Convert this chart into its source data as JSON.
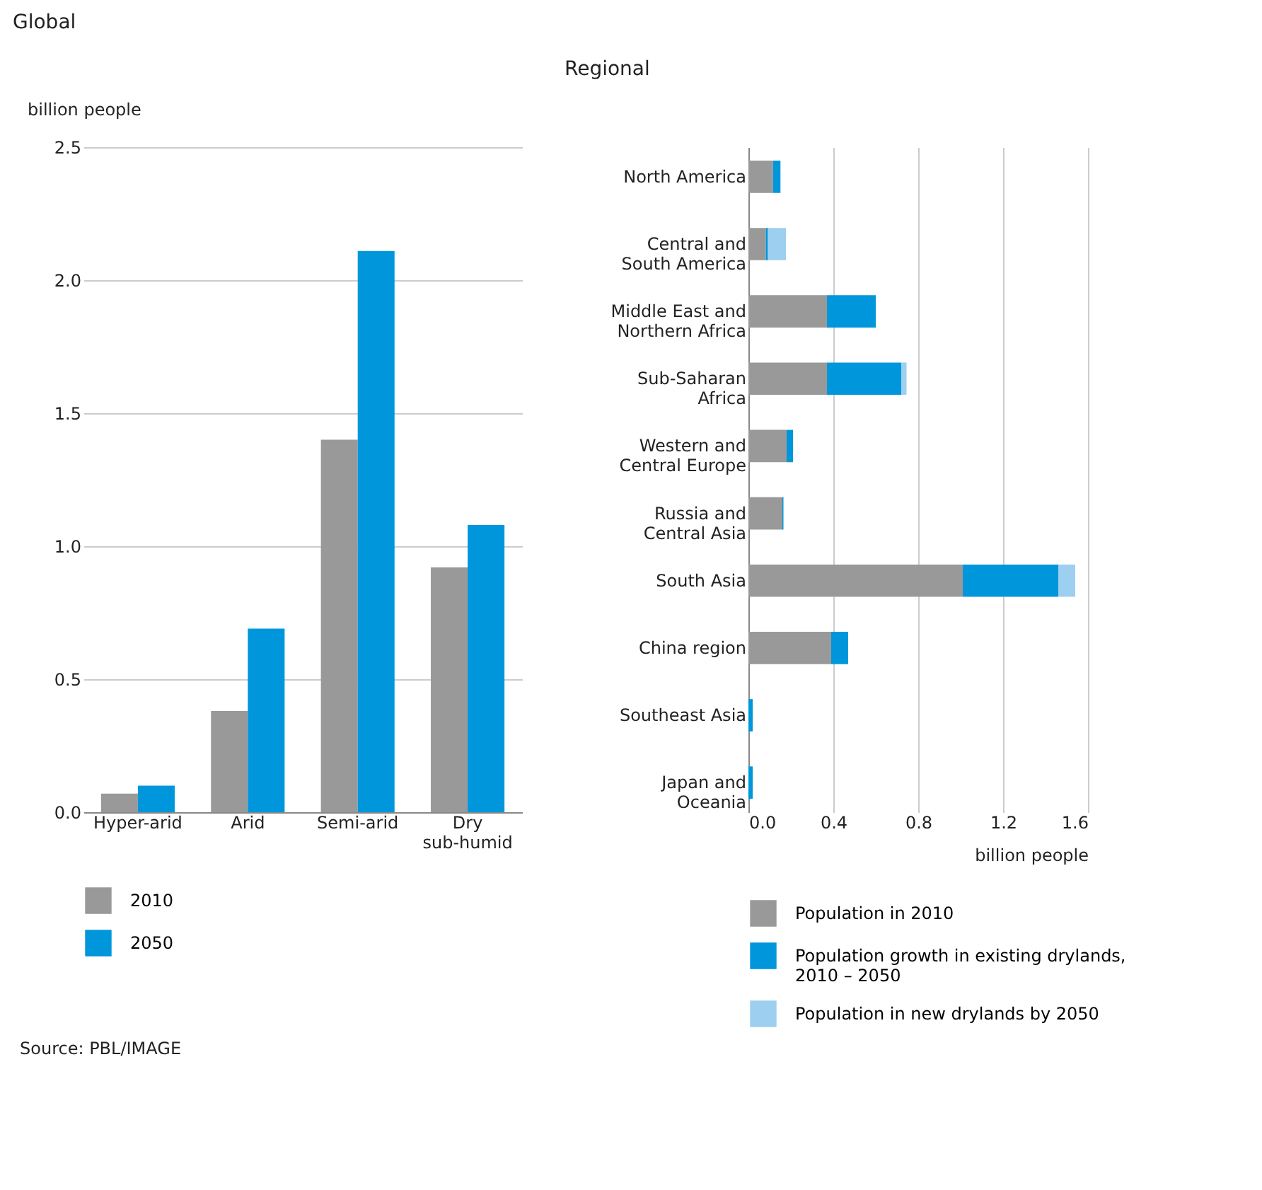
{
  "chart_data": [
    {
      "type": "bar",
      "title": "Global",
      "ylabel": "billion people",
      "categories": [
        "Hyper-arid",
        "Arid",
        "Semi-arid",
        "Dry\nsub-humid"
      ],
      "series": [
        {
          "name": "2010",
          "color": "#999999",
          "values": [
            0.07,
            0.38,
            1.4,
            0.92
          ]
        },
        {
          "name": "2050",
          "color": "#0096db",
          "values": [
            0.1,
            0.69,
            2.11,
            1.08
          ]
        }
      ],
      "ylim": [
        0,
        2.5
      ],
      "yticks": [
        {
          "value": 0,
          "label": "0.0"
        },
        0.5,
        {
          "value": 1,
          "label": "1.0"
        },
        1.5,
        {
          "value": 2,
          "label": "2.0"
        },
        2.5
      ],
      "grid": "y",
      "legend": "bottom",
      "annotations": [
        "Source: PBL/IMAGE"
      ]
    },
    {
      "type": "bar",
      "title": "Regional",
      "xlabel": "billion people",
      "orientation": "horizontal",
      "stacked": true,
      "categories": [
        "North America",
        "Central and\nSouth America",
        "Middle East and\nNorthern Africa",
        "Sub-Saharan\nAfrica",
        "Western and\nCentral Europe",
        "Russia and\nCentral Asia",
        "South Asia",
        "China region",
        "Southeast Asia",
        "Japan and\nOceania"
      ],
      "series": [
        {
          "name": "Population in 2010",
          "color": "#999999",
          "values": [
            0.116,
            0.082,
            0.37,
            0.37,
            0.18,
            0.16,
            1.01,
            0.39,
            0,
            0
          ]
        },
        {
          "name": "Population growth in existing drylands,\n2010 – 2050",
          "color": "#0096db",
          "values": [
            0.035,
            0.01,
            0.23,
            0.35,
            0.03,
            0.005,
            0.45,
            0.08,
            0.02,
            0.02
          ]
        },
        {
          "name": "Population in new drylands by 2050",
          "color": "#9dcff0",
          "values": [
            0,
            0.085,
            0,
            0.025,
            0,
            0,
            0.08,
            0,
            0,
            0
          ]
        }
      ],
      "xlim": [
        0,
        1.6
      ],
      "xticks": [
        {
          "value": 0,
          "label": "0.0"
        },
        0.4,
        0.8,
        1.2,
        1.6
      ],
      "grid": "x",
      "legend": "bottom"
    }
  ]
}
